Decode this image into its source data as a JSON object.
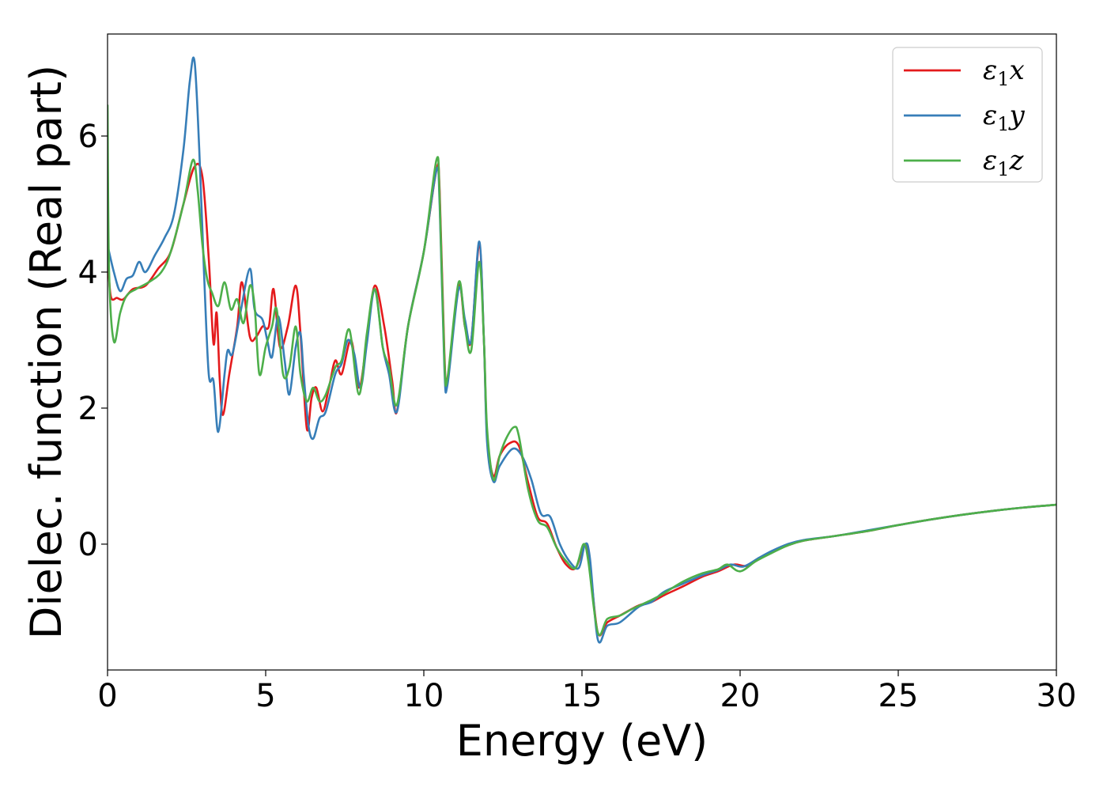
{
  "chart_data": {
    "type": "line",
    "title": "",
    "xlabel": "Energy (eV)",
    "ylabel": "Dielec. function (Real part)",
    "xlim": [
      0,
      30
    ],
    "ylim": [
      -1.85,
      7.5
    ],
    "xticks": [
      0,
      5,
      10,
      15,
      20,
      25,
      30
    ],
    "xtick_labels": [
      "0",
      "5",
      "10",
      "15",
      "20",
      "25",
      "30"
    ],
    "yticks": [
      0,
      2,
      4,
      6
    ],
    "ytick_labels": [
      "0",
      "2",
      "4",
      "6"
    ],
    "grid": false,
    "legend_position": "top-right",
    "series": [
      {
        "name": "ε₁x",
        "legend_base": "ε",
        "legend_sub": "1",
        "legend_var": "x",
        "color": "#e41a1c",
        "points": [
          [
            0,
            4.3
          ],
          [
            0.1,
            3.65
          ],
          [
            0.3,
            3.62
          ],
          [
            0.5,
            3.6
          ],
          [
            0.8,
            3.75
          ],
          [
            1.2,
            3.8
          ],
          [
            1.6,
            4.05
          ],
          [
            2.0,
            4.3
          ],
          [
            2.4,
            5.0
          ],
          [
            2.75,
            5.55
          ],
          [
            3.0,
            5.4
          ],
          [
            3.2,
            4.2
          ],
          [
            3.35,
            2.95
          ],
          [
            3.45,
            3.4
          ],
          [
            3.55,
            2.4
          ],
          [
            3.65,
            1.9
          ],
          [
            3.85,
            2.5
          ],
          [
            4.1,
            3.2
          ],
          [
            4.25,
            3.85
          ],
          [
            4.5,
            3.05
          ],
          [
            4.7,
            3.05
          ],
          [
            4.9,
            3.2
          ],
          [
            5.1,
            3.2
          ],
          [
            5.25,
            3.75
          ],
          [
            5.45,
            2.9
          ],
          [
            5.7,
            3.2
          ],
          [
            5.95,
            3.8
          ],
          [
            6.1,
            3.1
          ],
          [
            6.3,
            1.7
          ],
          [
            6.45,
            2.15
          ],
          [
            6.6,
            2.3
          ],
          [
            6.8,
            1.95
          ],
          [
            7.0,
            2.3
          ],
          [
            7.2,
            2.7
          ],
          [
            7.4,
            2.5
          ],
          [
            7.7,
            3.0
          ],
          [
            7.95,
            2.3
          ],
          [
            8.2,
            3.0
          ],
          [
            8.45,
            3.8
          ],
          [
            8.75,
            3.2
          ],
          [
            9.0,
            2.4
          ],
          [
            9.15,
            1.95
          ],
          [
            9.5,
            3.2
          ],
          [
            10.0,
            4.3
          ],
          [
            10.4,
            5.5
          ],
          [
            10.5,
            5.2
          ],
          [
            10.65,
            2.8
          ],
          [
            10.75,
            2.4
          ],
          [
            11.1,
            3.8
          ],
          [
            11.3,
            3.2
          ],
          [
            11.5,
            3.0
          ],
          [
            11.75,
            4.4
          ],
          [
            11.9,
            3.0
          ],
          [
            12.0,
            1.6
          ],
          [
            12.2,
            1.0
          ],
          [
            12.4,
            1.3
          ],
          [
            12.7,
            1.48
          ],
          [
            13.0,
            1.45
          ],
          [
            13.3,
            0.9
          ],
          [
            13.6,
            0.4
          ],
          [
            13.9,
            0.3
          ],
          [
            14.2,
            -0.05
          ],
          [
            14.5,
            -0.3
          ],
          [
            14.8,
            -0.35
          ],
          [
            15.1,
            0.0
          ],
          [
            15.25,
            -0.3
          ],
          [
            15.5,
            -1.3
          ],
          [
            15.8,
            -1.15
          ],
          [
            16.2,
            -1.05
          ],
          [
            16.8,
            -0.9
          ],
          [
            17.2,
            -0.85
          ],
          [
            17.6,
            -0.75
          ],
          [
            18.2,
            -0.62
          ],
          [
            18.8,
            -0.48
          ],
          [
            19.3,
            -0.4
          ],
          [
            19.8,
            -0.3
          ],
          [
            20.2,
            -0.32
          ],
          [
            20.6,
            -0.22
          ],
          [
            21.0,
            -0.12
          ],
          [
            21.5,
            -0.02
          ],
          [
            22.0,
            0.05
          ],
          [
            23.0,
            0.12
          ],
          [
            24.0,
            0.19
          ],
          [
            25.0,
            0.28
          ],
          [
            26.0,
            0.36
          ],
          [
            27.0,
            0.43
          ],
          [
            28.0,
            0.49
          ],
          [
            29.0,
            0.54
          ],
          [
            30.0,
            0.58
          ]
        ]
      },
      {
        "name": "ε₁y",
        "legend_base": "ε",
        "legend_sub": "1",
        "legend_var": "y",
        "color": "#377eb8",
        "points": [
          [
            0,
            4.4
          ],
          [
            0.2,
            4.0
          ],
          [
            0.4,
            3.72
          ],
          [
            0.6,
            3.9
          ],
          [
            0.8,
            3.95
          ],
          [
            1.0,
            4.15
          ],
          [
            1.2,
            4.0
          ],
          [
            1.5,
            4.25
          ],
          [
            1.8,
            4.5
          ],
          [
            2.1,
            4.85
          ],
          [
            2.4,
            5.8
          ],
          [
            2.6,
            6.8
          ],
          [
            2.75,
            7.1
          ],
          [
            2.9,
            5.8
          ],
          [
            3.05,
            4.0
          ],
          [
            3.2,
            2.5
          ],
          [
            3.35,
            2.4
          ],
          [
            3.5,
            1.65
          ],
          [
            3.7,
            2.5
          ],
          [
            3.8,
            2.85
          ],
          [
            3.95,
            2.8
          ],
          [
            4.2,
            3.4
          ],
          [
            4.5,
            4.05
          ],
          [
            4.65,
            3.45
          ],
          [
            4.9,
            3.3
          ],
          [
            5.05,
            3.0
          ],
          [
            5.2,
            2.75
          ],
          [
            5.4,
            3.35
          ],
          [
            5.6,
            2.7
          ],
          [
            5.75,
            2.2
          ],
          [
            5.95,
            2.9
          ],
          [
            6.1,
            3.1
          ],
          [
            6.2,
            2.5
          ],
          [
            6.35,
            1.75
          ],
          [
            6.5,
            1.55
          ],
          [
            6.7,
            1.85
          ],
          [
            6.9,
            1.95
          ],
          [
            7.2,
            2.5
          ],
          [
            7.4,
            2.65
          ],
          [
            7.6,
            3.0
          ],
          [
            7.8,
            2.8
          ],
          [
            8.0,
            2.3
          ],
          [
            8.2,
            2.95
          ],
          [
            8.45,
            3.75
          ],
          [
            8.7,
            2.9
          ],
          [
            8.9,
            2.5
          ],
          [
            9.15,
            1.95
          ],
          [
            9.5,
            3.2
          ],
          [
            10.0,
            4.3
          ],
          [
            10.4,
            5.5
          ],
          [
            10.5,
            5.0
          ],
          [
            10.65,
            2.6
          ],
          [
            10.75,
            2.35
          ],
          [
            11.1,
            3.75
          ],
          [
            11.3,
            3.3
          ],
          [
            11.5,
            3.0
          ],
          [
            11.75,
            4.45
          ],
          [
            11.9,
            3.0
          ],
          [
            12.0,
            1.5
          ],
          [
            12.2,
            0.92
          ],
          [
            12.4,
            1.15
          ],
          [
            12.8,
            1.4
          ],
          [
            13.1,
            1.3
          ],
          [
            13.4,
            0.95
          ],
          [
            13.7,
            0.45
          ],
          [
            14.0,
            0.4
          ],
          [
            14.3,
            0.0
          ],
          [
            14.6,
            -0.25
          ],
          [
            14.9,
            -0.35
          ],
          [
            15.1,
            0.0
          ],
          [
            15.25,
            -0.2
          ],
          [
            15.5,
            -1.4
          ],
          [
            15.8,
            -1.2
          ],
          [
            16.2,
            -1.15
          ],
          [
            16.8,
            -0.92
          ],
          [
            17.2,
            -0.85
          ],
          [
            17.6,
            -0.7
          ],
          [
            18.2,
            -0.58
          ],
          [
            18.8,
            -0.46
          ],
          [
            19.3,
            -0.38
          ],
          [
            19.7,
            -0.3
          ],
          [
            20.1,
            -0.33
          ],
          [
            20.6,
            -0.2
          ],
          [
            21.0,
            -0.1
          ],
          [
            21.5,
            0.0
          ],
          [
            22.0,
            0.06
          ],
          [
            23.0,
            0.12
          ],
          [
            24.0,
            0.2
          ],
          [
            25.0,
            0.28
          ],
          [
            26.0,
            0.36
          ],
          [
            27.0,
            0.43
          ],
          [
            28.0,
            0.49
          ],
          [
            29.0,
            0.54
          ],
          [
            30.0,
            0.58
          ]
        ]
      },
      {
        "name": "ε₁z",
        "legend_base": "ε",
        "legend_sub": "1",
        "legend_var": "z",
        "color": "#4daf4a",
        "points": [
          [
            0,
            6.45
          ],
          [
            0.05,
            4.0
          ],
          [
            0.2,
            2.98
          ],
          [
            0.4,
            3.4
          ],
          [
            0.6,
            3.65
          ],
          [
            0.9,
            3.75
          ],
          [
            1.3,
            3.85
          ],
          [
            1.7,
            4.0
          ],
          [
            2.0,
            4.3
          ],
          [
            2.4,
            5.0
          ],
          [
            2.7,
            5.65
          ],
          [
            2.85,
            5.2
          ],
          [
            3.0,
            4.4
          ],
          [
            3.15,
            3.9
          ],
          [
            3.3,
            3.7
          ],
          [
            3.5,
            3.5
          ],
          [
            3.7,
            3.85
          ],
          [
            3.9,
            3.45
          ],
          [
            4.1,
            3.6
          ],
          [
            4.3,
            3.25
          ],
          [
            4.5,
            3.8
          ],
          [
            4.65,
            3.5
          ],
          [
            4.8,
            2.5
          ],
          [
            5.0,
            2.9
          ],
          [
            5.2,
            3.2
          ],
          [
            5.35,
            3.45
          ],
          [
            5.55,
            2.5
          ],
          [
            5.75,
            2.6
          ],
          [
            5.95,
            3.2
          ],
          [
            6.1,
            2.5
          ],
          [
            6.3,
            2.1
          ],
          [
            6.5,
            2.3
          ],
          [
            6.7,
            2.1
          ],
          [
            6.9,
            2.2
          ],
          [
            7.2,
            2.6
          ],
          [
            7.4,
            2.7
          ],
          [
            7.65,
            3.15
          ],
          [
            7.95,
            2.2
          ],
          [
            8.2,
            3.1
          ],
          [
            8.45,
            3.75
          ],
          [
            8.7,
            2.9
          ],
          [
            8.9,
            2.6
          ],
          [
            9.15,
            2.05
          ],
          [
            9.5,
            3.2
          ],
          [
            10.0,
            4.3
          ],
          [
            10.4,
            5.65
          ],
          [
            10.5,
            5.1
          ],
          [
            10.65,
            2.7
          ],
          [
            10.75,
            2.45
          ],
          [
            11.1,
            3.85
          ],
          [
            11.3,
            3.2
          ],
          [
            11.5,
            2.85
          ],
          [
            11.75,
            4.15
          ],
          [
            11.9,
            3.0
          ],
          [
            12.0,
            1.7
          ],
          [
            12.2,
            0.95
          ],
          [
            12.4,
            1.3
          ],
          [
            12.6,
            1.55
          ],
          [
            12.85,
            1.72
          ],
          [
            13.0,
            1.6
          ],
          [
            13.3,
            0.8
          ],
          [
            13.6,
            0.35
          ],
          [
            13.9,
            0.25
          ],
          [
            14.2,
            -0.05
          ],
          [
            14.5,
            -0.25
          ],
          [
            14.8,
            -0.35
          ],
          [
            15.05,
            0.0
          ],
          [
            15.2,
            -0.25
          ],
          [
            15.5,
            -1.3
          ],
          [
            15.8,
            -1.1
          ],
          [
            16.2,
            -1.05
          ],
          [
            16.6,
            -0.95
          ],
          [
            17.2,
            -0.82
          ],
          [
            17.6,
            -0.72
          ],
          [
            18.2,
            -0.55
          ],
          [
            18.8,
            -0.43
          ],
          [
            19.3,
            -0.37
          ],
          [
            19.6,
            -0.3
          ],
          [
            20.0,
            -0.4
          ],
          [
            20.5,
            -0.25
          ],
          [
            21.0,
            -0.13
          ],
          [
            21.5,
            -0.02
          ],
          [
            22.0,
            0.05
          ],
          [
            23.0,
            0.12
          ],
          [
            24.0,
            0.19
          ],
          [
            25.0,
            0.28
          ],
          [
            26.0,
            0.36
          ],
          [
            27.0,
            0.43
          ],
          [
            28.0,
            0.49
          ],
          [
            29.0,
            0.54
          ],
          [
            30.0,
            0.58
          ]
        ]
      }
    ]
  }
}
